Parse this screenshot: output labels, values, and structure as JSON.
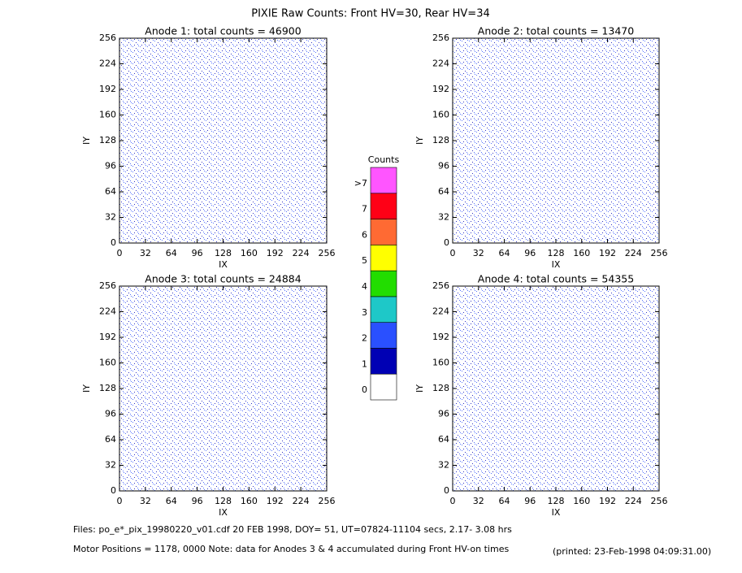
{
  "title": "PIXIE Raw Counts:  Front HV=30, Rear HV=34",
  "chart_data": [
    {
      "type": "heatmap",
      "title": "Anode 1: total counts = 46900",
      "xlabel": "IX",
      "ylabel": "IY",
      "xlim": [
        0,
        256
      ],
      "ylim": [
        0,
        256
      ],
      "xticks": [
        0,
        32,
        64,
        96,
        128,
        160,
        192,
        224,
        256
      ],
      "yticks": [
        0,
        32,
        64,
        96,
        128,
        160,
        192,
        224,
        256
      ]
    },
    {
      "type": "heatmap",
      "title": "Anode 2: total counts = 13470",
      "xlabel": "IX",
      "ylabel": "IY",
      "xlim": [
        0,
        256
      ],
      "ylim": [
        0,
        256
      ],
      "xticks": [
        0,
        32,
        64,
        96,
        128,
        160,
        192,
        224,
        256
      ],
      "yticks": [
        0,
        32,
        64,
        96,
        128,
        160,
        192,
        224,
        256
      ]
    },
    {
      "type": "heatmap",
      "title": "Anode 3: total counts = 24884",
      "xlabel": "IX",
      "ylabel": "IY",
      "xlim": [
        0,
        256
      ],
      "ylim": [
        0,
        256
      ],
      "xticks": [
        0,
        32,
        64,
        96,
        128,
        160,
        192,
        224,
        256
      ],
      "yticks": [
        0,
        32,
        64,
        96,
        128,
        160,
        192,
        224,
        256
      ]
    },
    {
      "type": "heatmap",
      "title": "Anode 4: total counts = 54355",
      "xlabel": "IX",
      "ylabel": "IY",
      "xlim": [
        0,
        256
      ],
      "ylim": [
        0,
        256
      ],
      "xticks": [
        0,
        32,
        64,
        96,
        128,
        160,
        192,
        224,
        256
      ],
      "yticks": [
        0,
        32,
        64,
        96,
        128,
        160,
        192,
        224,
        256
      ]
    }
  ],
  "colorbar": {
    "title": "Counts",
    "categories": [
      "0",
      "1",
      "2",
      "3",
      "4",
      "5",
      "6",
      "7",
      ">7"
    ],
    "colors": [
      "#ffffff",
      "#0000b4",
      "#2a50ff",
      "#1ec8c8",
      "#22dd00",
      "#ffff00",
      "#ff6a33",
      "#ff0016",
      "#ff55ff"
    ]
  },
  "footer": {
    "files": "Files: po_e*_pix_19980220_v01.cdf   20 FEB 1998, DOY= 51, UT=07824-11104 secs,  2.17- 3.08 hrs",
    "motor": "Motor Positions = 1178, 0000   Note: data for Anodes 3 & 4 accumulated during Front HV-on times",
    "printed": "(printed: 23-Feb-1998 04:09:31.00)"
  }
}
